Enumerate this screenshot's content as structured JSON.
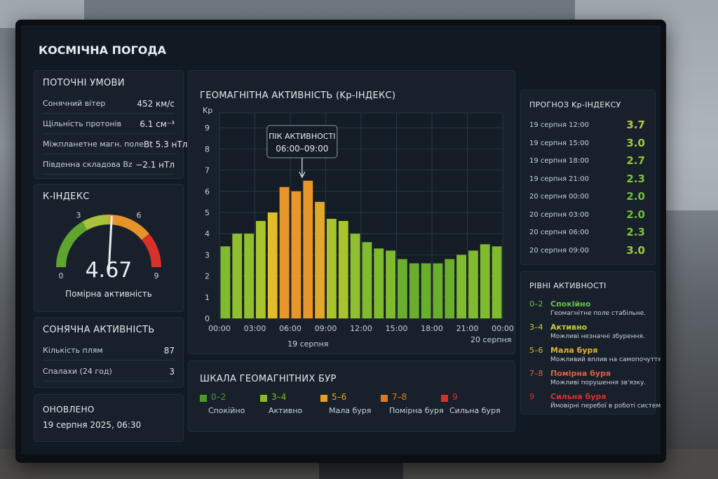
{
  "header": {
    "title": "КОСМІЧНА ПОГОДА"
  },
  "conditions": {
    "title": "ПОТОЧНІ УМОВИ",
    "rows": [
      {
        "label": "Сонячний вітер",
        "value": "452 км/с"
      },
      {
        "label": "Щільність протонів",
        "value": "6.1 см⁻³"
      },
      {
        "label": "Міжпланетне магн. поле",
        "value": "Bt 5.3 нТл"
      },
      {
        "label": "Південна складова Bz",
        "value": "−2.1 нТл"
      }
    ]
  },
  "k_index": {
    "title": "К-ІНДЕКС",
    "value": 4.67,
    "status": "Помірна активність",
    "range": [
      0,
      9
    ],
    "ticks": [
      0,
      3,
      6,
      9
    ]
  },
  "solar": {
    "title": "СОНЯЧНА АКТИВНІСТЬ",
    "rows": [
      {
        "label": "Кількість плям",
        "value": "87"
      },
      {
        "label": "Спалахи (24 год)",
        "value": "3"
      }
    ]
  },
  "updated": {
    "title": "ОНОВЛЕНО",
    "time": "19 серпня 2025, 06:30"
  },
  "chart_data": {
    "type": "bar",
    "title": "ГЕОМАГНІТНА АКТИВНІСТЬ (Kp-ІНДЕКС)",
    "y_label": "Kp",
    "x": [
      0,
      1,
      2,
      3,
      4,
      5,
      6,
      7,
      8,
      9,
      10,
      11,
      12,
      13,
      14,
      15,
      16,
      17,
      18,
      19,
      20,
      21,
      22,
      23
    ],
    "values": [
      3.4,
      4.0,
      4.0,
      4.6,
      5.0,
      6.2,
      6.0,
      6.5,
      5.5,
      4.7,
      4.6,
      4.0,
      3.6,
      3.3,
      3.2,
      2.8,
      2.6,
      2.6,
      2.6,
      2.8,
      3.0,
      3.2,
      3.5,
      3.4
    ],
    "colors": [
      "#7fba2f",
      "#8fbf2e",
      "#8fbf2e",
      "#a8c42c",
      "#e2bc2a",
      "#e8962a",
      "#e8962a",
      "#e8962a",
      "#e2a82a",
      "#a8c42c",
      "#a8c42c",
      "#8fbf2e",
      "#7fba2f",
      "#7fba2f",
      "#7fba2f",
      "#6aae2e",
      "#6aae2e",
      "#6aae2e",
      "#6aae2e",
      "#6aae2e",
      "#7fba2f",
      "#7fba2f",
      "#7fba2f",
      "#7fba2f"
    ],
    "xlim": [
      0,
      24
    ],
    "xticks": [
      {
        "value": 0,
        "label": "00:00"
      },
      {
        "value": 3,
        "label": "03:00"
      },
      {
        "value": 6,
        "label": "06:00"
      },
      {
        "value": 9,
        "label": "09:00"
      },
      {
        "value": 12,
        "label": "12:00"
      },
      {
        "value": 15,
        "label": "15:00"
      },
      {
        "value": 18,
        "label": "18:00"
      },
      {
        "value": 21,
        "label": "21:00"
      },
      {
        "value": 24,
        "label": "00:00"
      }
    ],
    "ylim": [
      0,
      9.7
    ],
    "yticks": [
      0,
      1,
      2,
      3,
      4,
      5,
      6,
      7,
      8,
      9
    ],
    "grid": true,
    "date_labels": [
      "19 серпня",
      "20 серпня"
    ],
    "annotation": {
      "title": "ПІК АКТИВНОСТІ",
      "text": "06:00–09:00"
    }
  },
  "forecast": {
    "title": "ПРОГНОЗ Kp-ІНДЕКСУ",
    "rows": [
      {
        "time": "19 серпня 12:00",
        "value": "3.7",
        "color": "#b8c83a"
      },
      {
        "time": "19 серпня 15:00",
        "value": "3.0",
        "color": "#a3c63a"
      },
      {
        "time": "19 серпня 18:00",
        "value": "2.7",
        "color": "#8dc23a"
      },
      {
        "time": "19 серпня 21:00",
        "value": "2.3",
        "color": "#7dc23a"
      },
      {
        "time": "20 серпня 00:00",
        "value": "2.0",
        "color": "#6fbe3a"
      },
      {
        "time": "20 серпня 03:00",
        "value": "2.0",
        "color": "#6fbe3a"
      },
      {
        "time": "20 серпня 06:00",
        "value": "2.3",
        "color": "#7dc23a"
      },
      {
        "time": "20 серпня 09:00",
        "value": "3.0",
        "color": "#a3c63a"
      }
    ]
  },
  "levels": {
    "title": "РІВНІ АКТИВНОСТІ",
    "items": [
      {
        "range": "0–2",
        "name": "Спокійно",
        "desc": "Геомагнітне поле стабільне.",
        "color": "#6cc04a"
      },
      {
        "range": "3–4",
        "name": "Активно",
        "desc": "Можливі незначні збурення.",
        "color": "#c9cc3a"
      },
      {
        "range": "5–6",
        "name": "Мала буря",
        "desc": "Можливий вплив на самопочуття.",
        "color": "#e8b030"
      },
      {
        "range": "7–8",
        "name": "Помірна буря",
        "desc": "Можливі порушення зв'язку.",
        "color": "#e4603a"
      },
      {
        "range": "9",
        "name": "Сильна буря",
        "desc": "Ймовірні перебої в роботі систем.",
        "color": "#d8302a"
      }
    ]
  },
  "scale": {
    "title": "ШКАЛА ГЕОМАГНІТНИХ БУР",
    "items": [
      {
        "range": "0–2",
        "name": "Спокійно",
        "color": "#4a9a2a"
      },
      {
        "range": "3–4",
        "name": "Активно",
        "color": "#8ab82a"
      },
      {
        "range": "5–6",
        "name": "Мала буря",
        "color": "#e8a020"
      },
      {
        "range": "7–8",
        "name": "Помірна буря",
        "color": "#e07820"
      },
      {
        "range": "9",
        "name": "Сильна буря",
        "color": "#d83030"
      }
    ]
  }
}
